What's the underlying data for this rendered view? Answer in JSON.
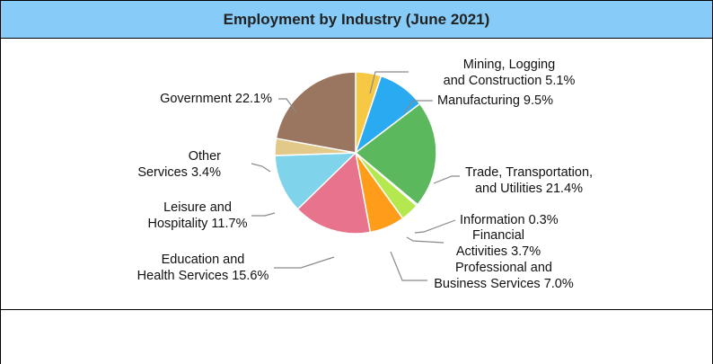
{
  "header": {
    "title": "Employment by Industry (June 2021)"
  },
  "chart_data": {
    "type": "pie",
    "title": "Employment by Industry (June 2021)",
    "slices": [
      {
        "name": "Mining, Logging and Construction",
        "label_lines": [
          "Mining, Logging",
          "and Construction 5.1%"
        ],
        "value": 5.1,
        "color": "#f7c843"
      },
      {
        "name": "Manufacturing",
        "label_lines": [
          "Manufacturing 9.5%"
        ],
        "value": 9.5,
        "color": "#2aaaf0"
      },
      {
        "name": "Trade, Transportation, and Utilities",
        "label_lines": [
          "Trade, Transportation,",
          "and Utilities 21.4%"
        ],
        "value": 21.4,
        "color": "#5cb85c"
      },
      {
        "name": "Information",
        "label_lines": [
          "Information 0.3%"
        ],
        "value": 0.3,
        "color": "#2d8a4e"
      },
      {
        "name": "Financial Activities",
        "label_lines": [
          "Financial",
          "Activities 3.7%"
        ],
        "value": 3.7,
        "color": "#b5e84f"
      },
      {
        "name": "Professional and Business Services",
        "label_lines": [
          "Professional and",
          "Business Services 7.0%"
        ],
        "value": 7.0,
        "color": "#ff9c1a"
      },
      {
        "name": "Education and Health Services",
        "label_lines": [
          "Education and",
          "Health Services 15.6%"
        ],
        "value": 15.6,
        "color": "#e8738c"
      },
      {
        "name": "Leisure and Hospitality",
        "label_lines": [
          "Leisure and",
          "Hospitality 11.7%"
        ],
        "value": 11.7,
        "color": "#7fd3ea"
      },
      {
        "name": "Other Services",
        "label_lines": [
          "Other",
          "Services 3.4%"
        ],
        "value": 3.4,
        "color": "#e2c98a"
      },
      {
        "name": "Government",
        "label_lines": [
          "Government 22.1%"
        ],
        "value": 22.1,
        "color": "#9a7560"
      }
    ]
  }
}
